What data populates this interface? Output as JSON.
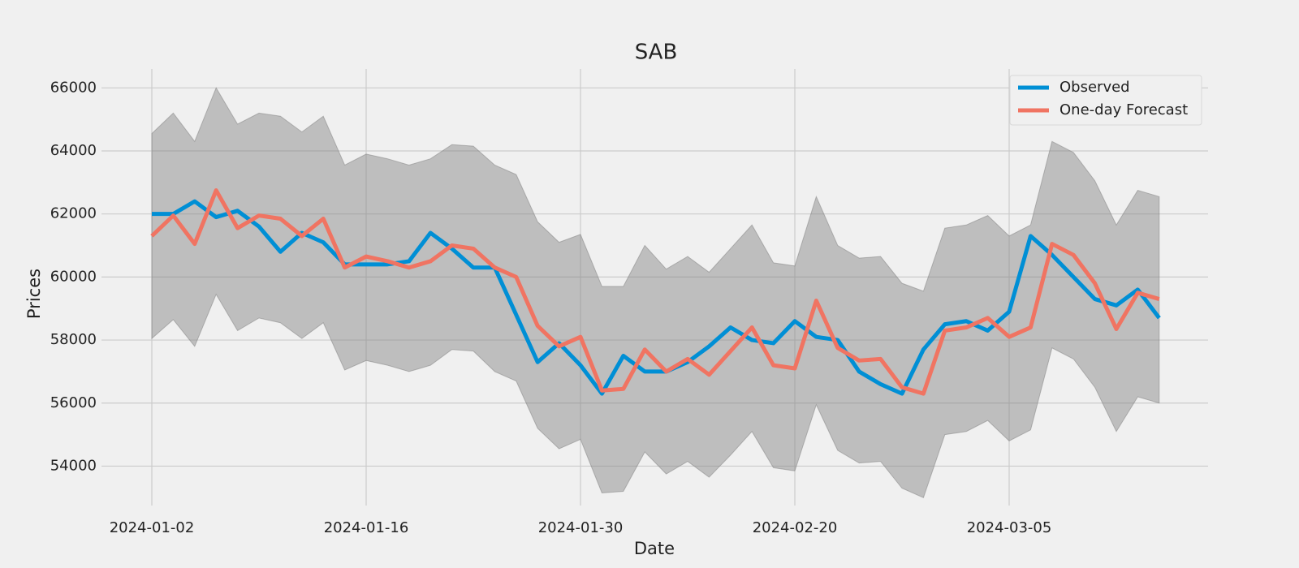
{
  "chart_data": {
    "type": "line",
    "title": "SAB",
    "x_label": "Date",
    "y_label": "Prices",
    "categories": [
      "2024-01-02",
      null,
      null,
      null,
      null,
      null,
      null,
      null,
      null,
      null,
      "2024-01-16",
      null,
      null,
      null,
      null,
      null,
      null,
      null,
      null,
      null,
      "2024-01-30",
      null,
      null,
      null,
      null,
      null,
      null,
      null,
      null,
      null,
      "2024-02-20",
      null,
      null,
      null,
      null,
      null,
      null,
      null,
      null,
      null,
      "2024-03-05",
      null,
      null,
      null,
      null,
      null,
      null,
      null
    ],
    "series": [
      {
        "name": "Observed",
        "color": "#008fd5",
        "values": [
          62000,
          62000,
          62400,
          61900,
          62100,
          61600,
          60800,
          61400,
          61100,
          60400,
          60400,
          60400,
          60500,
          61400,
          60900,
          60300,
          60300,
          58800,
          57300,
          57900,
          57200,
          56300,
          57500,
          57000,
          57000,
          57300,
          57800,
          58400,
          58000,
          57900,
          58600,
          58100,
          58000,
          57000,
          56600,
          56300,
          57700,
          58500,
          58600,
          58300,
          58900,
          61300,
          60700,
          60000,
          59300,
          59100,
          59600,
          58700
        ]
      },
      {
        "name": "One-day Forecast",
        "color": "#f07462",
        "values": [
          61300,
          61950,
          61050,
          62750,
          61550,
          61950,
          61850,
          61300,
          61850,
          60300,
          60650,
          60500,
          60300,
          60500,
          61000,
          60900,
          60300,
          60000,
          58450,
          57800,
          58100,
          56400,
          56450,
          57700,
          57000,
          57400,
          56900,
          57650,
          58400,
          57200,
          57100,
          59250,
          57750,
          57350,
          57400,
          56500,
          56300,
          58300,
          58400,
          58700,
          58100,
          58400,
          61050,
          60700,
          59800,
          58350,
          59500,
          59300
        ]
      }
    ],
    "band": {
      "color": "#808080",
      "upper": [
        64550,
        65200,
        64300,
        66000,
        64850,
        65200,
        65100,
        64600,
        65100,
        63550,
        63900,
        63750,
        63550,
        63750,
        64200,
        64150,
        63550,
        63250,
        61750,
        61100,
        61350,
        59700,
        59700,
        61000,
        60250,
        60650,
        60150,
        60900,
        61650,
        60450,
        60350,
        62550,
        61000,
        60600,
        60650,
        59800,
        59550,
        61550,
        61650,
        61950,
        61300,
        61650,
        64300,
        63950,
        63050,
        61650,
        62750,
        62550
      ],
      "lower": [
        58050,
        58650,
        57800,
        59450,
        58300,
        58700,
        58550,
        58050,
        58550,
        57050,
        57350,
        57200,
        57000,
        57200,
        57700,
        57650,
        57000,
        56700,
        55200,
        54550,
        54850,
        53150,
        53200,
        54450,
        53750,
        54150,
        53650,
        54350,
        55100,
        53950,
        53850,
        55950,
        54500,
        54100,
        54150,
        53300,
        53000,
        55000,
        55100,
        55450,
        54800,
        55150,
        57750,
        57400,
        56500,
        55100,
        56200,
        56000
      ]
    },
    "ylim": [
      52750,
      66600
    ],
    "yticks": [
      54000,
      56000,
      58000,
      60000,
      62000,
      64000,
      66000
    ],
    "grid": true,
    "legend": "upper right"
  }
}
